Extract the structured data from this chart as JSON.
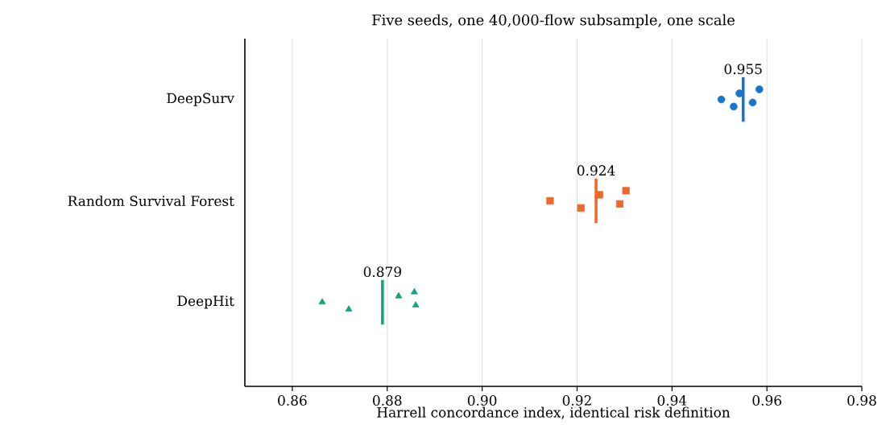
{
  "chart_data": {
    "type": "scatter",
    "orientation": "horizontal",
    "title": "Five seeds, one 40,000-flow subsample, one scale",
    "xlabel": "Harrell concordance index, identical risk definition",
    "categories": [
      "DeepSurv",
      "Random Survival Forest",
      "DeepHit"
    ],
    "series": [
      {
        "marker": "circle",
        "color": "#1874cd",
        "x": [
          "DeepSurv",
          "DeepSurv",
          "DeepSurv",
          "DeepSurv",
          "DeepSurv"
        ],
        "values": [
          0.9504,
          0.953,
          0.9542,
          0.957,
          0.9584
        ]
      },
      {
        "marker": "square",
        "color": "#ee6a2c",
        "x": [
          "Random Survival Forest",
          "Random Survival Forest",
          "Random Survival Forest",
          "Random Survival Forest",
          "Random Survival Forest"
        ],
        "values": [
          0.9143,
          0.9208,
          0.9247,
          0.929,
          0.9303
        ]
      },
      {
        "marker": "triangle",
        "color": "#13a57d",
        "x": [
          "DeepHit",
          "DeepHit",
          "DeepHit",
          "DeepHit",
          "DeepHit"
        ],
        "values": [
          0.8663,
          0.8719,
          0.8824,
          0.886,
          0.8857
        ]
      }
    ],
    "ref_lines": [
      {
        "axis": "x",
        "value": 0.955,
        "label": "0.955",
        "color": "#1874cd"
      },
      {
        "axis": "x",
        "value": 0.924,
        "label": "0.924",
        "color": "#ee6a2c"
      },
      {
        "axis": "x",
        "value": 0.879,
        "label": "0.879",
        "color": "#13a57d"
      }
    ],
    "xlim": [
      0.85,
      0.98
    ],
    "xticks": [
      0.86,
      0.88,
      {
        "value": 0.9,
        "label": "0.90"
      },
      0.92,
      0.94,
      0.96,
      0.98
    ],
    "grid": "x"
  }
}
